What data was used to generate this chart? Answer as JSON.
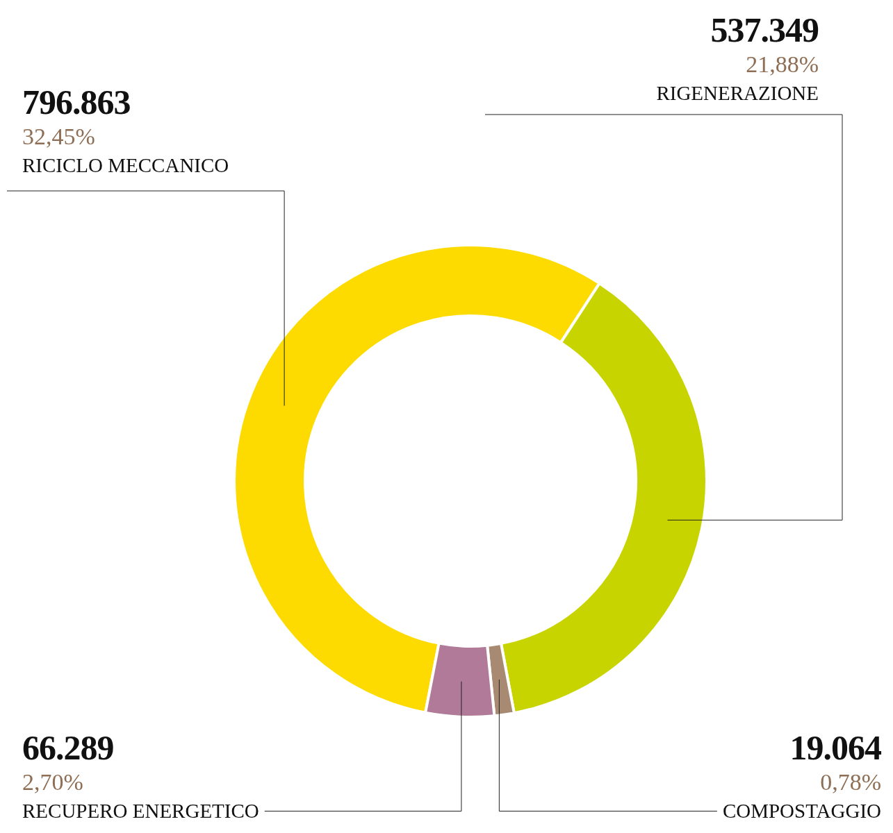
{
  "chart_data": {
    "type": "donut",
    "categories": [
      "RICICLO MECCANICO",
      "RIGENERAZIONE",
      "COMPOSTAGGIO",
      "RECUPERO ENERGETICO"
    ],
    "values": [
      796863,
      537349,
      19064,
      66289
    ],
    "value_labels": [
      "796.863",
      "537.349",
      "19.064",
      "66.289"
    ],
    "annotations": [
      "32,45%",
      "21,88%",
      "0,78%",
      "2,70%"
    ],
    "colors": [
      "#fddb00",
      "#c8d400",
      "#a88a72",
      "#b07a98"
    ],
    "legend": false
  }
}
